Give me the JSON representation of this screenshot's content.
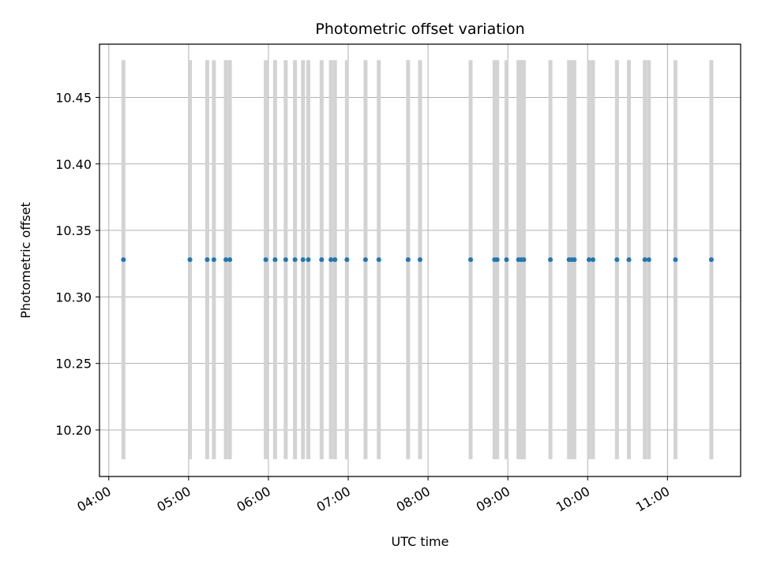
{
  "chart_data": {
    "type": "scatter",
    "title": "Photometric offset variation",
    "xlabel": "UTC time",
    "ylabel": "Photometric offset",
    "x_ticks": [
      "04:00",
      "05:00",
      "06:00",
      "07:00",
      "08:00",
      "09:00",
      "10:00",
      "11:00"
    ],
    "y_ticks": [
      "10.20",
      "10.25",
      "10.30",
      "10.35",
      "10.40",
      "10.45"
    ],
    "xlim": [
      "03:53",
      "11:55"
    ],
    "ylim": [
      10.165,
      10.49
    ],
    "grid": true,
    "error_bar_range": [
      10.178,
      10.478
    ],
    "y_value": 10.328,
    "times": [
      "04:11",
      "05:01",
      "05:14",
      "05:19",
      "05:28",
      "05:31",
      "05:58",
      "06:05",
      "06:13",
      "06:20",
      "06:26",
      "06:30",
      "06:40",
      "06:47",
      "06:50",
      "06:59",
      "07:13",
      "07:23",
      "07:45",
      "07:54",
      "08:32",
      "08:50",
      "08:52",
      "08:59",
      "09:08",
      "09:10",
      "09:12",
      "09:32",
      "09:46",
      "09:48",
      "09:50",
      "10:01",
      "10:04",
      "10:22",
      "10:31",
      "10:43",
      "10:46",
      "11:06",
      "11:33"
    ],
    "colors": {
      "point": "#1f77b4",
      "errorbar": "#d3d3d3",
      "grid": "#b0b0b0"
    }
  }
}
